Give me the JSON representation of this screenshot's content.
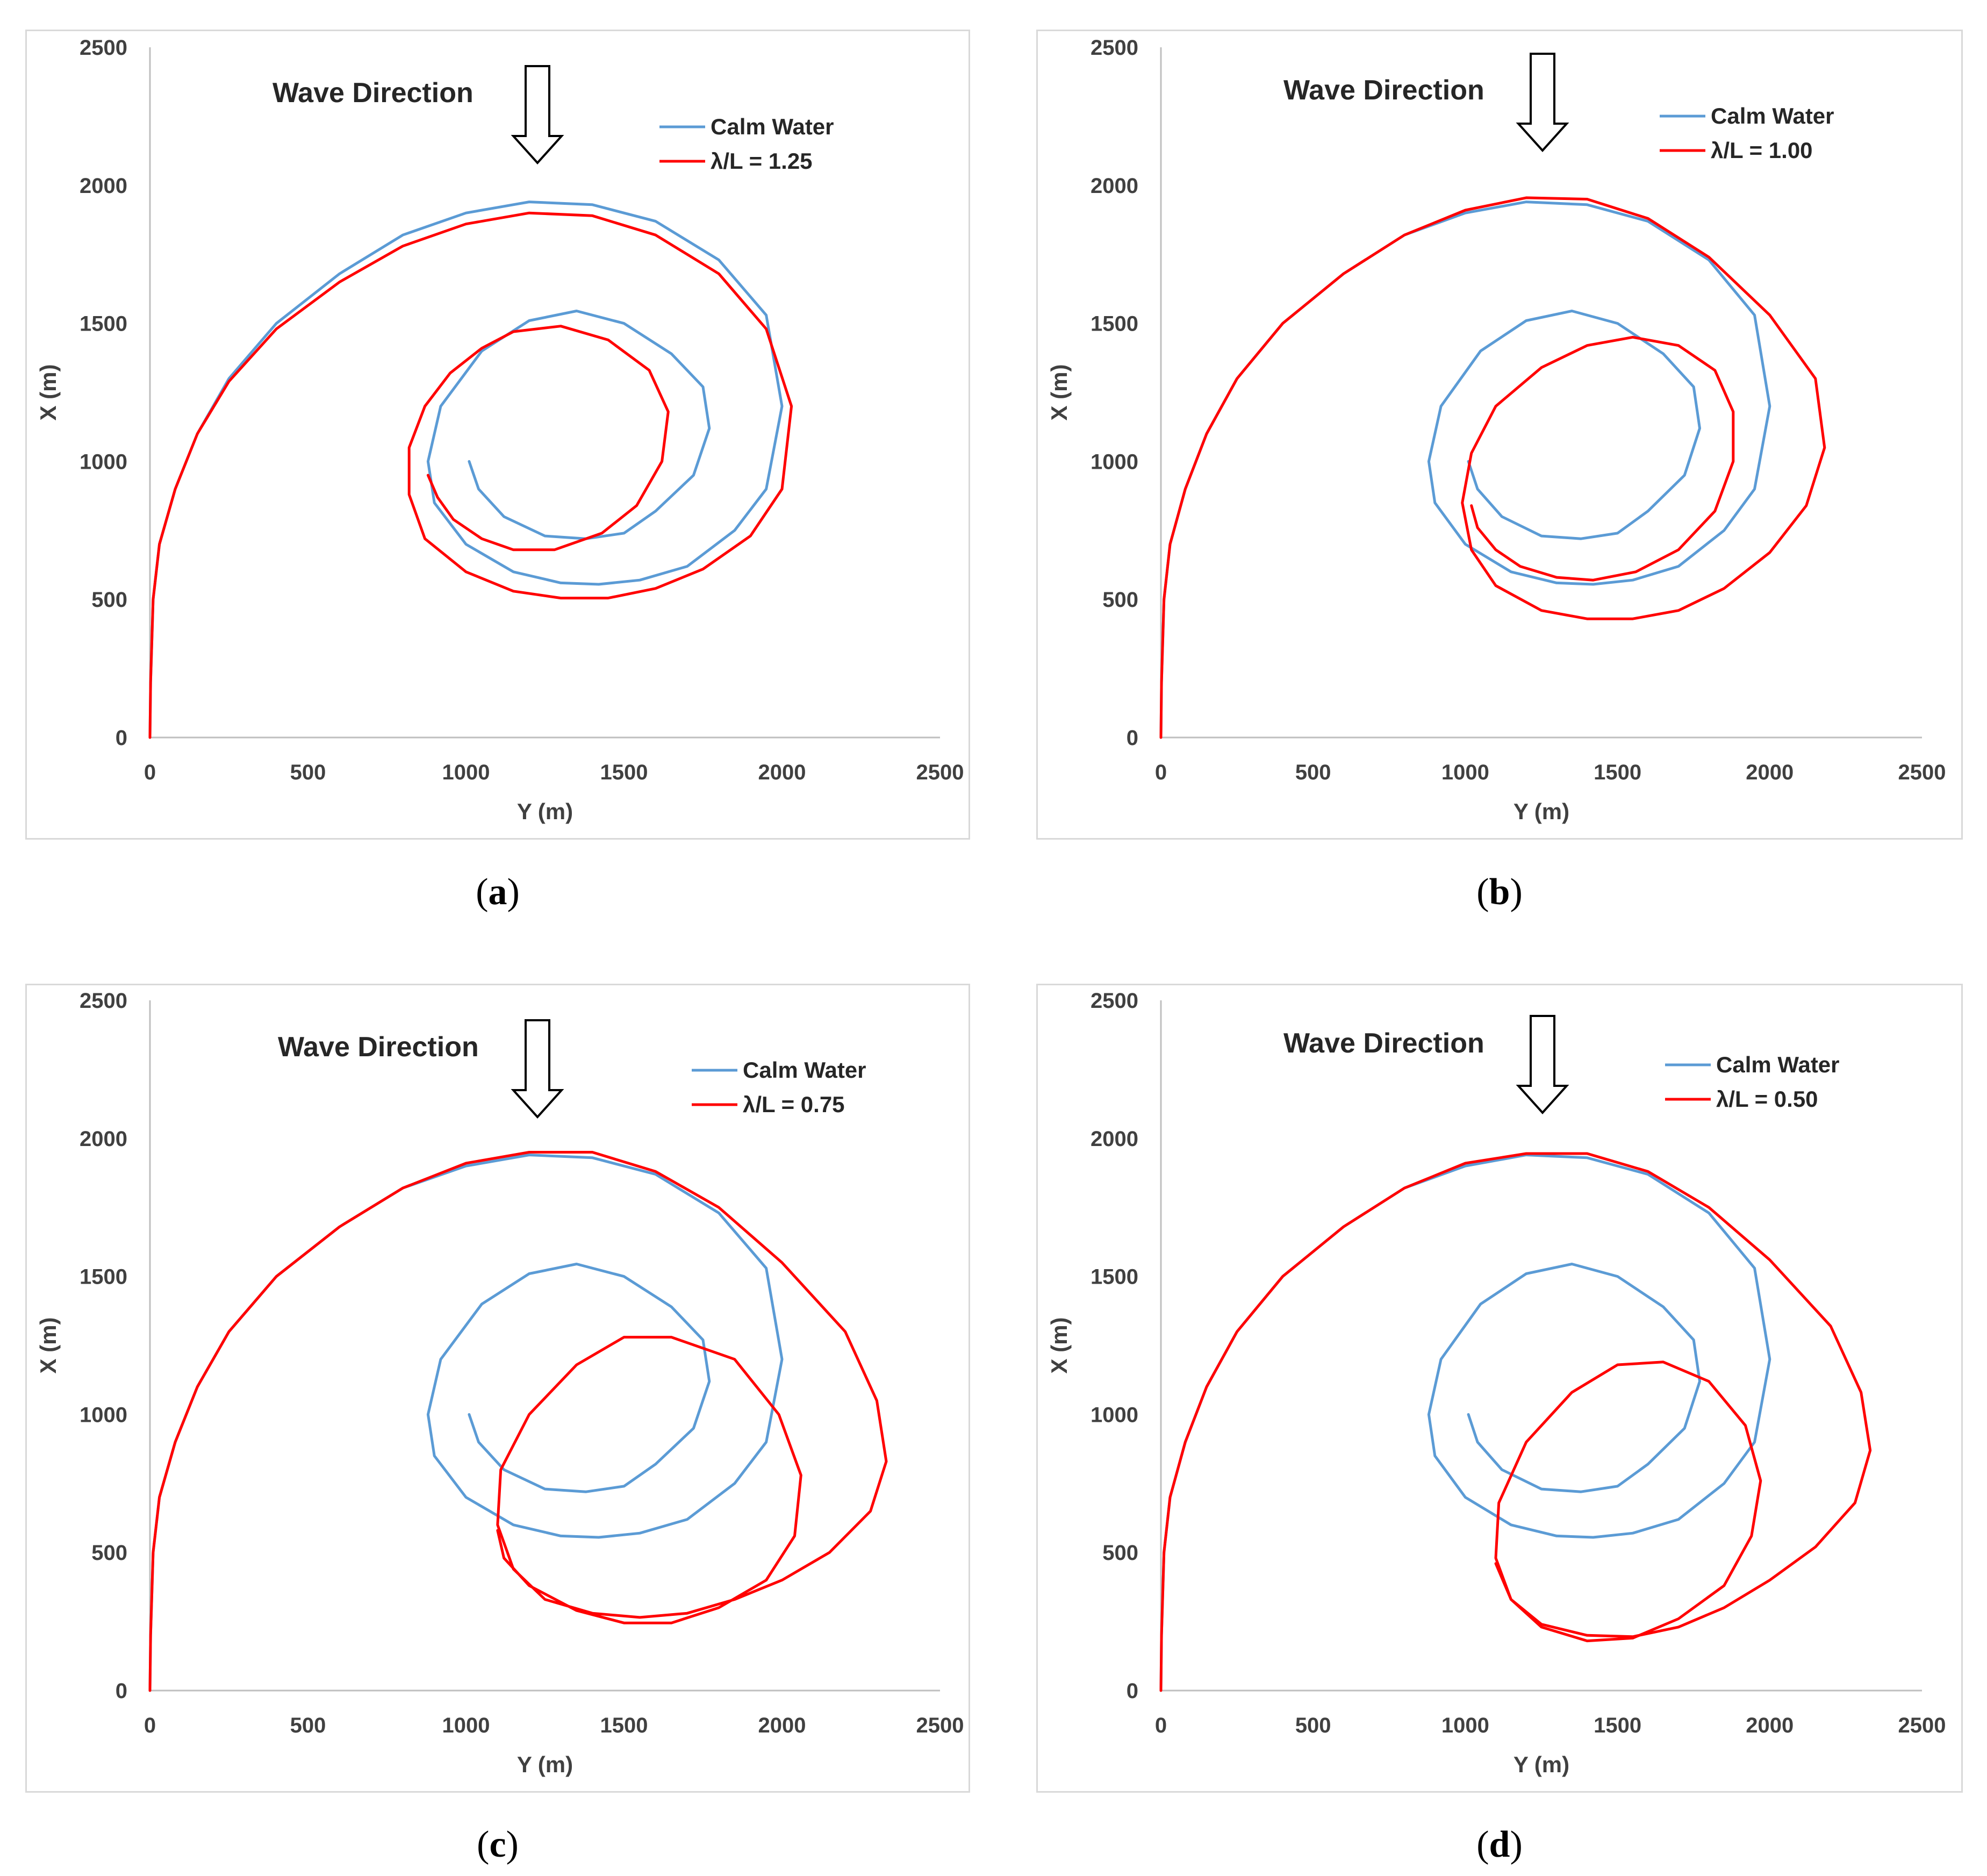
{
  "colors": {
    "calm": "#5B9BD5",
    "wave": "#FF0000",
    "axis": "#bfbfbf",
    "text": "#404040"
  },
  "chart_data": [
    {
      "type": "line",
      "panel_label": "a",
      "wave_direction_label": "Wave Direction",
      "xlabel": "Y (m)",
      "ylabel": "X (m)",
      "xlim": [
        0,
        2500
      ],
      "ylim": [
        0,
        2500
      ],
      "xticks": [
        "0",
        "500",
        "1000",
        "1500",
        "2000",
        "2500"
      ],
      "yticks": [
        "0",
        "500",
        "1000",
        "1500",
        "2000",
        "2500"
      ],
      "series": [
        {
          "name": "Calm Water",
          "y": [
            0,
            2,
            10,
            30,
            80,
            150,
            250,
            400,
            600,
            800,
            1000,
            1200,
            1400,
            1600,
            1800,
            1950,
            2000,
            1950,
            1850,
            1700,
            1550,
            1420,
            1300,
            1150,
            1000,
            900,
            880,
            920,
            1050,
            1200,
            1350,
            1500,
            1650,
            1750,
            1770,
            1720,
            1600,
            1500,
            1380,
            1250,
            1120,
            1040,
            1010
          ],
          "x": [
            0,
            200,
            500,
            700,
            900,
            1100,
            1300,
            1500,
            1680,
            1820,
            1900,
            1940,
            1930,
            1870,
            1730,
            1530,
            1200,
            900,
            750,
            620,
            570,
            555,
            560,
            600,
            700,
            850,
            1000,
            1200,
            1400,
            1510,
            1545,
            1500,
            1390,
            1270,
            1120,
            950,
            820,
            740,
            720,
            730,
            800,
            900,
            1000
          ]
        },
        {
          "name": "λ/L = 1.25",
          "y": [
            0,
            2,
            10,
            30,
            80,
            150,
            250,
            400,
            600,
            800,
            1000,
            1200,
            1400,
            1600,
            1800,
            1950,
            2030,
            2000,
            1900,
            1750,
            1600,
            1450,
            1300,
            1150,
            1000,
            870,
            820,
            820,
            870,
            950,
            1050,
            1150,
            1300,
            1450,
            1580,
            1640,
            1620,
            1540,
            1430,
            1280,
            1150,
            1050,
            960,
            910,
            880
          ],
          "x": [
            0,
            200,
            500,
            700,
            900,
            1100,
            1290,
            1480,
            1650,
            1780,
            1860,
            1900,
            1890,
            1820,
            1680,
            1480,
            1200,
            900,
            730,
            610,
            540,
            505,
            505,
            530,
            600,
            720,
            880,
            1050,
            1200,
            1320,
            1410,
            1470,
            1490,
            1440,
            1330,
            1180,
            1000,
            840,
            740,
            680,
            680,
            720,
            790,
            870,
            950
          ]
        }
      ],
      "legend": [
        "Calm Water",
        "λ/L = 1.25"
      ]
    },
    {
      "type": "line",
      "panel_label": "b",
      "wave_direction_label": "Wave Direction",
      "xlabel": "Y (m)",
      "ylabel": "X (m)",
      "xlim": [
        0,
        2500
      ],
      "ylim": [
        0,
        2500
      ],
      "xticks": [
        "0",
        "500",
        "1000",
        "1500",
        "2000",
        "2500"
      ],
      "yticks": [
        "0",
        "500",
        "1000",
        "1500",
        "2000",
        "2500"
      ],
      "series": [
        {
          "name": "Calm Water",
          "y": [
            0,
            2,
            10,
            30,
            80,
            150,
            250,
            400,
            600,
            800,
            1000,
            1200,
            1400,
            1600,
            1800,
            1950,
            2000,
            1950,
            1850,
            1700,
            1550,
            1420,
            1300,
            1150,
            1000,
            900,
            880,
            920,
            1050,
            1200,
            1350,
            1500,
            1650,
            1750,
            1770,
            1720,
            1600,
            1500,
            1380,
            1250,
            1120,
            1040,
            1010
          ],
          "x": [
            0,
            200,
            500,
            700,
            900,
            1100,
            1300,
            1500,
            1680,
            1820,
            1900,
            1940,
            1930,
            1870,
            1730,
            1530,
            1200,
            900,
            750,
            620,
            570,
            555,
            560,
            600,
            700,
            850,
            1000,
            1200,
            1400,
            1510,
            1545,
            1500,
            1390,
            1270,
            1120,
            950,
            820,
            740,
            720,
            730,
            800,
            900,
            1000
          ]
        },
        {
          "name": "λ/L = 1.00",
          "y": [
            0,
            2,
            10,
            30,
            80,
            150,
            250,
            400,
            600,
            800,
            1000,
            1200,
            1400,
            1600,
            1800,
            2000,
            2150,
            2180,
            2120,
            2000,
            1850,
            1700,
            1550,
            1400,
            1250,
            1100,
            1020,
            990,
            1020,
            1100,
            1250,
            1400,
            1550,
            1700,
            1820,
            1880,
            1880,
            1820,
            1700,
            1560,
            1420,
            1300,
            1180,
            1100,
            1040,
            1020
          ],
          "x": [
            0,
            200,
            500,
            700,
            900,
            1100,
            1300,
            1500,
            1680,
            1820,
            1910,
            1955,
            1950,
            1880,
            1740,
            1530,
            1300,
            1050,
            840,
            670,
            540,
            460,
            430,
            430,
            460,
            550,
            680,
            850,
            1030,
            1200,
            1340,
            1420,
            1450,
            1420,
            1330,
            1180,
            1000,
            820,
            680,
            600,
            570,
            580,
            620,
            680,
            760,
            840
          ]
        }
      ],
      "legend": [
        "Calm Water",
        "λ/L = 1.00"
      ]
    },
    {
      "type": "line",
      "panel_label": "c",
      "wave_direction_label": "Wave Direction",
      "xlabel": "Y (m)",
      "ylabel": "X (m)",
      "xlim": [
        0,
        2500
      ],
      "ylim": [
        0,
        2500
      ],
      "xticks": [
        "0",
        "500",
        "1000",
        "1500",
        "2000",
        "2500"
      ],
      "yticks": [
        "0",
        "500",
        "1000",
        "1500",
        "2000",
        "2500"
      ],
      "series": [
        {
          "name": "Calm Water",
          "y": [
            0,
            2,
            10,
            30,
            80,
            150,
            250,
            400,
            600,
            800,
            1000,
            1200,
            1400,
            1600,
            1800,
            1950,
            2000,
            1950,
            1850,
            1700,
            1550,
            1420,
            1300,
            1150,
            1000,
            900,
            880,
            920,
            1050,
            1200,
            1350,
            1500,
            1650,
            1750,
            1770,
            1720,
            1600,
            1500,
            1380,
            1250,
            1120,
            1040,
            1010
          ],
          "x": [
            0,
            200,
            500,
            700,
            900,
            1100,
            1300,
            1500,
            1680,
            1820,
            1900,
            1940,
            1930,
            1870,
            1730,
            1530,
            1200,
            900,
            750,
            620,
            570,
            555,
            560,
            600,
            700,
            850,
            1000,
            1200,
            1400,
            1510,
            1545,
            1500,
            1390,
            1270,
            1120,
            950,
            820,
            740,
            720,
            730,
            800,
            900,
            1000
          ]
        },
        {
          "name": "λ/L = 0.75",
          "y": [
            0,
            2,
            10,
            30,
            80,
            150,
            250,
            400,
            600,
            800,
            1000,
            1200,
            1400,
            1600,
            1800,
            2000,
            2200,
            2300,
            2330,
            2280,
            2150,
            2000,
            1850,
            1700,
            1550,
            1400,
            1250,
            1150,
            1100,
            1110,
            1200,
            1350,
            1500,
            1650,
            1850,
            1990,
            2060,
            2040,
            1950,
            1800,
            1650,
            1500,
            1350,
            1200,
            1120,
            1100
          ],
          "x": [
            0,
            200,
            500,
            700,
            900,
            1100,
            1300,
            1500,
            1680,
            1820,
            1910,
            1950,
            1950,
            1880,
            1750,
            1550,
            1300,
            1050,
            830,
            650,
            500,
            400,
            330,
            280,
            265,
            280,
            330,
            440,
            600,
            800,
            1000,
            1180,
            1280,
            1280,
            1200,
            1000,
            780,
            560,
            400,
            300,
            245,
            245,
            290,
            380,
            480,
            580
          ]
        }
      ],
      "legend": [
        "Calm Water",
        "λ/L = 0.75"
      ]
    },
    {
      "type": "line",
      "panel_label": "d",
      "wave_direction_label": "Wave Direction",
      "xlabel": "Y (m)",
      "ylabel": "X (m)",
      "xlim": [
        0,
        2500
      ],
      "ylim": [
        0,
        2500
      ],
      "xticks": [
        "0",
        "500",
        "1000",
        "1500",
        "2000",
        "2500"
      ],
      "yticks": [
        "0",
        "500",
        "1000",
        "1500",
        "2000",
        "2500"
      ],
      "series": [
        {
          "name": "Calm Water",
          "y": [
            0,
            2,
            10,
            30,
            80,
            150,
            250,
            400,
            600,
            800,
            1000,
            1200,
            1400,
            1600,
            1800,
            1950,
            2000,
            1950,
            1850,
            1700,
            1550,
            1420,
            1300,
            1150,
            1000,
            900,
            880,
            920,
            1050,
            1200,
            1350,
            1500,
            1650,
            1750,
            1770,
            1720,
            1600,
            1500,
            1380,
            1250,
            1120,
            1040,
            1010
          ],
          "x": [
            0,
            200,
            500,
            700,
            900,
            1100,
            1300,
            1500,
            1680,
            1820,
            1900,
            1940,
            1930,
            1870,
            1730,
            1530,
            1200,
            900,
            750,
            620,
            570,
            555,
            560,
            600,
            700,
            850,
            1000,
            1200,
            1400,
            1510,
            1545,
            1500,
            1390,
            1270,
            1120,
            950,
            820,
            740,
            720,
            730,
            800,
            900,
            1000
          ]
        },
        {
          "name": "λ/L = 0.50",
          "y": [
            0,
            2,
            10,
            30,
            80,
            150,
            250,
            400,
            600,
            800,
            1000,
            1200,
            1400,
            1600,
            1800,
            2000,
            2200,
            2300,
            2330,
            2280,
            2150,
            2000,
            1850,
            1700,
            1550,
            1400,
            1250,
            1150,
            1100,
            1110,
            1200,
            1350,
            1500,
            1650,
            1800,
            1920,
            1970,
            1940,
            1850,
            1700,
            1550,
            1400,
            1250,
            1150,
            1100
          ],
          "x": [
            0,
            200,
            500,
            700,
            900,
            1100,
            1300,
            1500,
            1680,
            1820,
            1910,
            1945,
            1945,
            1880,
            1750,
            1560,
            1320,
            1080,
            870,
            680,
            520,
            400,
            300,
            230,
            195,
            200,
            240,
            330,
            480,
            680,
            900,
            1080,
            1180,
            1190,
            1120,
            960,
            760,
            560,
            380,
            260,
            190,
            180,
            230,
            330,
            460
          ]
        }
      ],
      "legend": [
        "Calm Water",
        "λ/L = 0.50"
      ]
    }
  ],
  "captions": [
    "a",
    "b",
    "c",
    "d"
  ]
}
